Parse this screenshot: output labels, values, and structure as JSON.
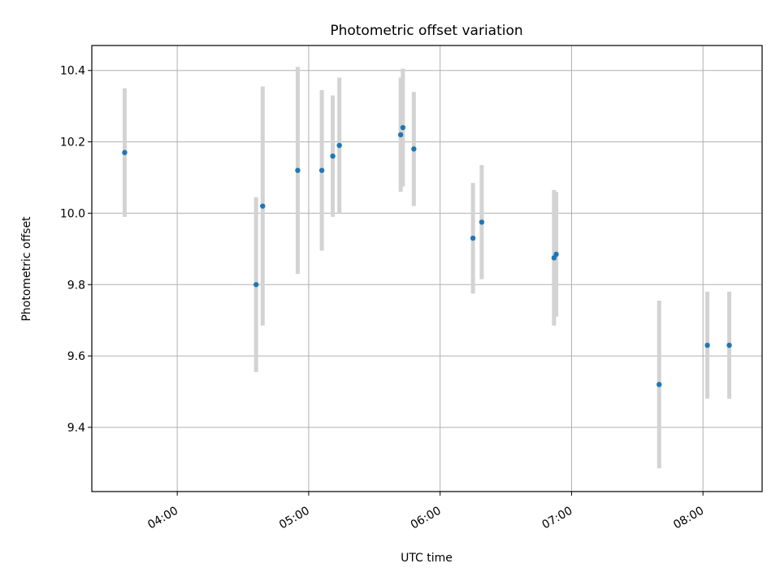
{
  "chart_data": {
    "type": "scatter",
    "title": "Photometric offset variation",
    "xlabel": "UTC time",
    "ylabel": "Photometric offset",
    "xlim": [
      "03:21",
      "08:27"
    ],
    "ylim": [
      9.22,
      10.47
    ],
    "x_ticks": [
      "04:00",
      "05:00",
      "06:00",
      "07:00",
      "08:00"
    ],
    "y_ticks": [
      "9.4",
      "9.6",
      "9.8",
      "10.0",
      "10.2",
      "10.4"
    ],
    "grid": true,
    "series": [
      {
        "style": "errorbar",
        "x": [
          "03:36",
          "04:36",
          "04:39",
          "04:55",
          "05:06",
          "05:11",
          "05:14",
          "05:42",
          "05:43",
          "05:48",
          "06:15",
          "06:19",
          "06:52",
          "06:53",
          "07:40",
          "08:02",
          "08:12"
        ],
        "y": [
          10.17,
          9.8,
          10.02,
          10.12,
          10.12,
          10.16,
          10.19,
          10.22,
          10.24,
          10.18,
          9.93,
          9.975,
          9.875,
          9.885,
          9.52,
          9.63,
          9.63
        ],
        "yerr": [
          0.18,
          0.245,
          0.335,
          0.29,
          0.225,
          0.17,
          0.19,
          0.16,
          0.165,
          0.16,
          0.155,
          0.16,
          0.19,
          0.175,
          0.235,
          0.15,
          0.15
        ]
      }
    ],
    "colors": {
      "point": "#1f77b4",
      "errorbar": "#d3d3d3",
      "grid": "#b0b0b0",
      "axes": "#000000"
    }
  }
}
